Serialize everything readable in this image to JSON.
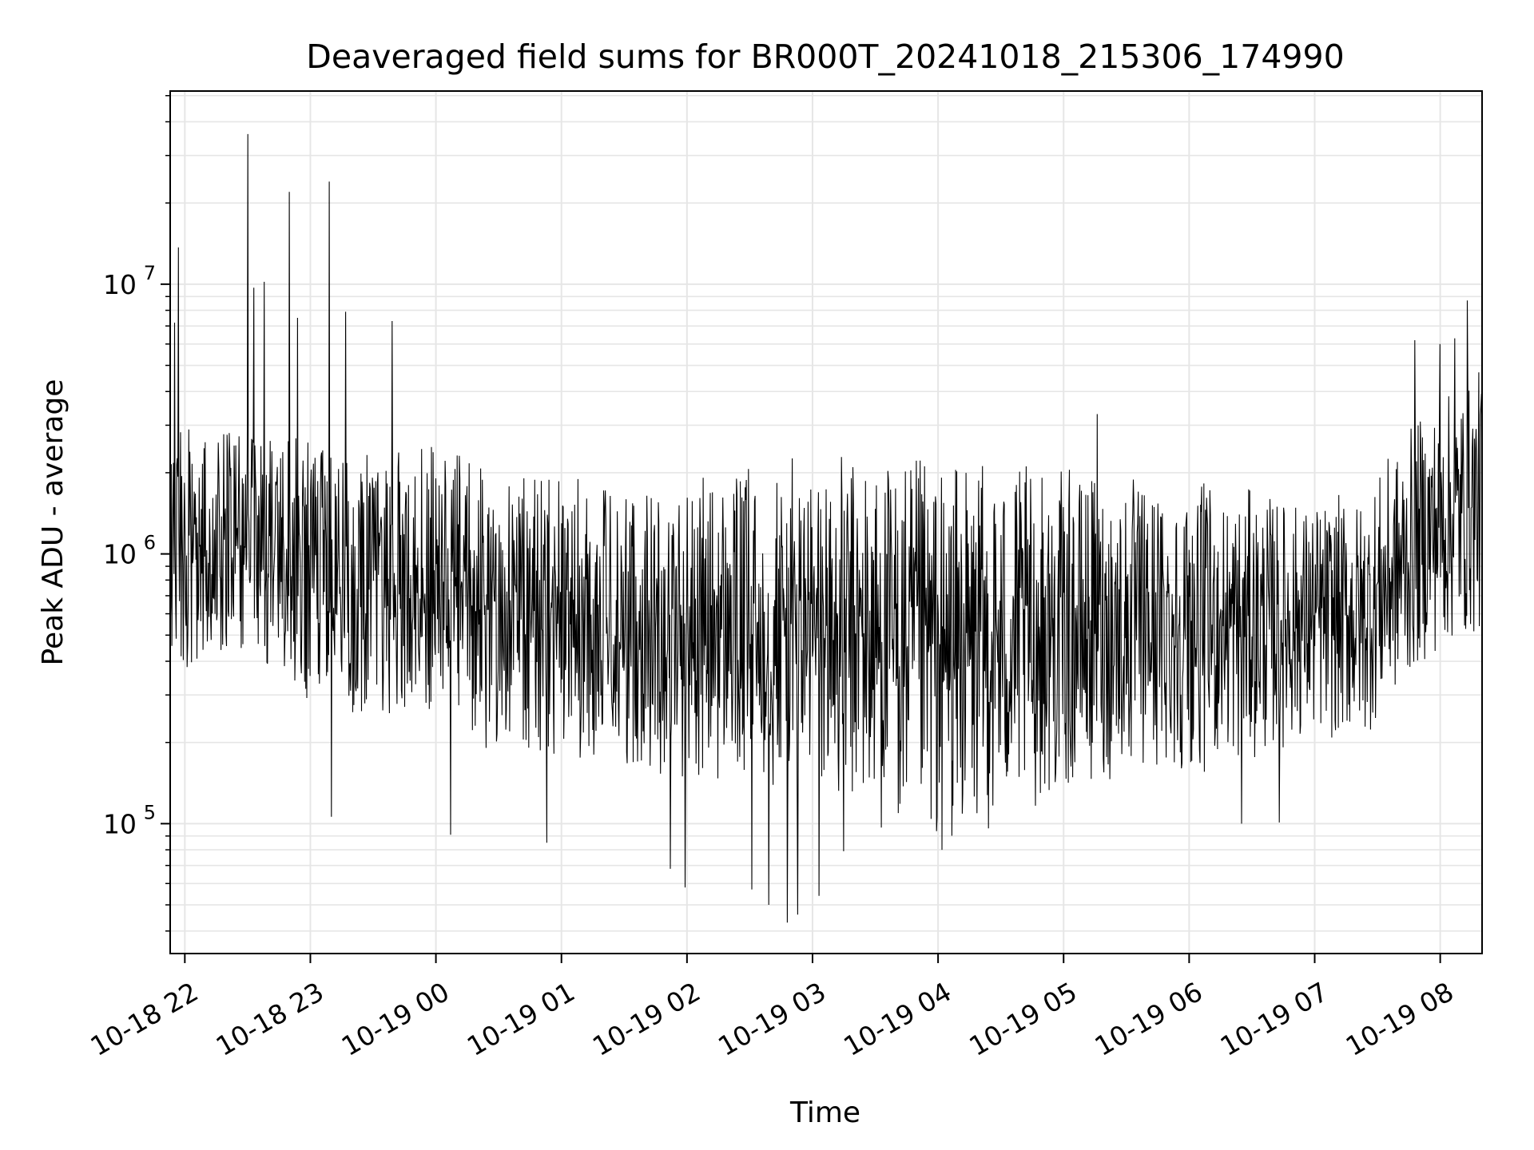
{
  "chart_data": {
    "type": "line",
    "title": "Deaveraged field sums for BR000T_20241018_215306_174990",
    "xlabel": "Time",
    "ylabel": "Peak ADU - average",
    "x_ticks": [
      "10-18 22",
      "10-18 23",
      "10-19 00",
      "10-19 01",
      "10-19 02",
      "10-19 03",
      "10-19 04",
      "10-19 05",
      "10-19 06",
      "10-19 07",
      "10-19 08"
    ],
    "xlim": [
      "2024-10-18T21:53",
      "2024-10-19T08:20"
    ],
    "y_scale": "log",
    "ylim": [
      33000,
      52000000
    ],
    "y_ticks": [
      {
        "base": "10",
        "exp": "5",
        "value": 100000
      },
      {
        "base": "10",
        "exp": "6",
        "value": 1000000
      },
      {
        "base": "10",
        "exp": "7",
        "value": 10000000
      }
    ],
    "grid": true,
    "line_color": "#000000",
    "grid_color": "#e6e6e6",
    "envelope_minutes": [
      0,
      30,
      60,
      90,
      120,
      150,
      180,
      210,
      240,
      270,
      300,
      330,
      360,
      390,
      420,
      450,
      480,
      510,
      540,
      570,
      600,
      627
    ],
    "envelope_low": [
      350000,
      450000,
      280000,
      250000,
      260000,
      190000,
      170000,
      160000,
      150000,
      130000,
      120000,
      100000,
      80000,
      90000,
      120000,
      140000,
      150000,
      160000,
      200000,
      200000,
      400000,
      500000
    ],
    "envelope_high": [
      3500000,
      2800000,
      3000000,
      2500000,
      2600000,
      2200000,
      2100000,
      1800000,
      1900000,
      2100000,
      2300000,
      2400000,
      2300000,
      2200000,
      2100000,
      2000000,
      1900000,
      1800000,
      1600000,
      1700000,
      3500000,
      5000000
    ],
    "spikes": [
      {
        "minute": 2,
        "value": 7200000
      },
      {
        "minute": 4,
        "value": 13700000
      },
      {
        "minute": 37,
        "value": 36000000
      },
      {
        "minute": 40,
        "value": 9700000
      },
      {
        "minute": 45,
        "value": 10200000
      },
      {
        "minute": 57,
        "value": 22000000
      },
      {
        "minute": 61,
        "value": 7500000
      },
      {
        "minute": 76,
        "value": 24000000
      },
      {
        "minute": 77,
        "value": 106000
      },
      {
        "minute": 84,
        "value": 7900000
      },
      {
        "minute": 106,
        "value": 7300000
      },
      {
        "minute": 134,
        "value": 91000
      },
      {
        "minute": 180,
        "value": 85000
      },
      {
        "minute": 239,
        "value": 68000
      },
      {
        "minute": 246,
        "value": 58000
      },
      {
        "minute": 278,
        "value": 57000
      },
      {
        "minute": 286,
        "value": 50000
      },
      {
        "minute": 295,
        "value": 43000
      },
      {
        "minute": 300,
        "value": 46000
      },
      {
        "minute": 310,
        "value": 54000
      },
      {
        "minute": 322,
        "value": 79000
      },
      {
        "minute": 369,
        "value": 80000
      },
      {
        "minute": 443,
        "value": 3300000
      },
      {
        "minute": 512,
        "value": 100000
      },
      {
        "minute": 530,
        "value": 101000
      },
      {
        "minute": 595,
        "value": 6200000
      },
      {
        "minute": 607,
        "value": 6000000
      },
      {
        "minute": 614,
        "value": 6300000
      },
      {
        "minute": 620,
        "value": 8700000
      }
    ]
  }
}
